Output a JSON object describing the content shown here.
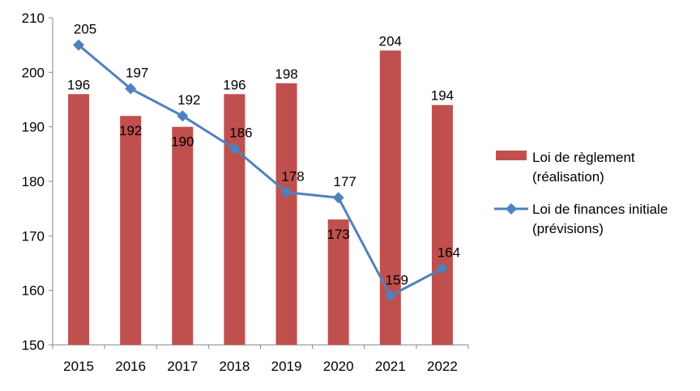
{
  "chart_data": {
    "type": "bar",
    "categories": [
      "2015",
      "2016",
      "2017",
      "2018",
      "2019",
      "2020",
      "2021",
      "2022"
    ],
    "ylim": [
      150,
      210
    ],
    "yticks": [
      150,
      160,
      170,
      180,
      190,
      200,
      210
    ],
    "grid": false,
    "legend_position": "right",
    "series": [
      {
        "name": "Loi de règlement (réalisation)",
        "name_lines": [
          "Loi de règlement",
          "(réalisation)"
        ],
        "type": "bar",
        "color": "#C0504D",
        "values": [
          196,
          192,
          190,
          196,
          198,
          173,
          204,
          194
        ]
      },
      {
        "name": "Loi de finances initiale (prévisions)",
        "name_lines": [
          "Loi de finances initiale",
          "(prévisions)"
        ],
        "type": "line",
        "marker": "diamond",
        "color": "#4F81BD",
        "values": [
          205,
          197,
          192,
          186,
          178,
          177,
          159,
          164
        ]
      }
    ]
  }
}
